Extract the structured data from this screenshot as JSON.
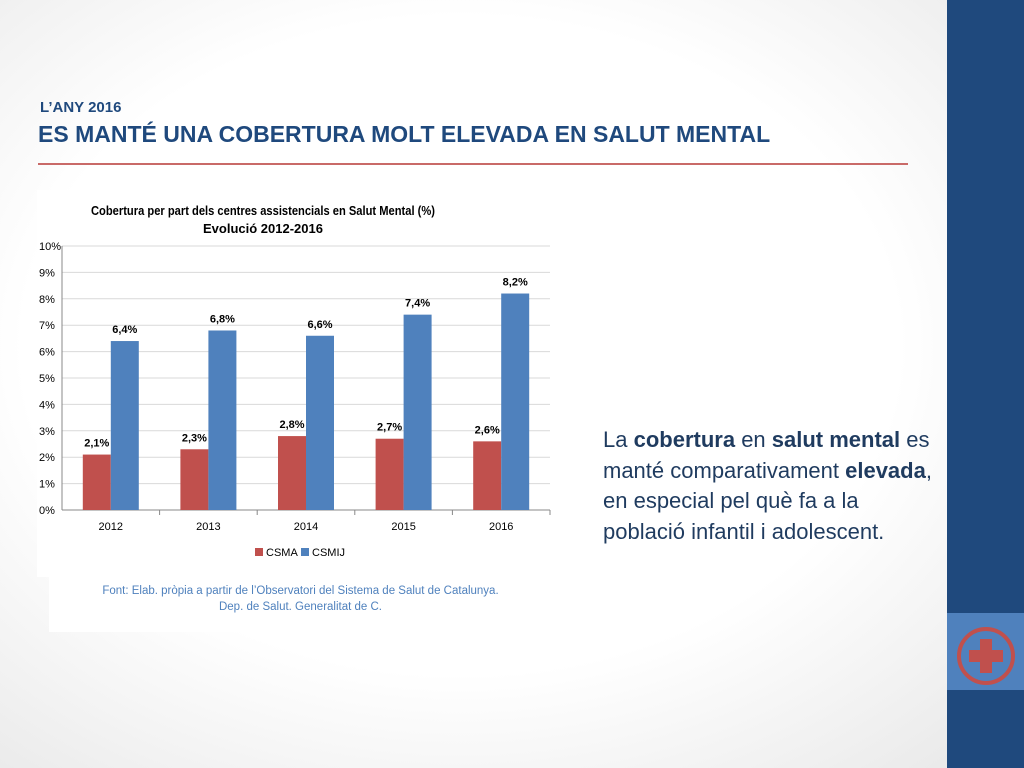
{
  "slide": {
    "kicker": "L’ANY 2016",
    "title": "ES MANTÉ UNA COBERTURA MOLT ELEVADA EN SALUT MENTAL",
    "source_line1": "Font: Elab. pròpia a partir de  l’Observatori del Sistema de Salut de Catalunya.",
    "source_line2": "Dep. de Salut. Generalitat de C.",
    "body": {
      "t1": "La ",
      "b1": "cobertura",
      "t2": " en ",
      "b2": "salut mental",
      "t3": " es manté comparativament ",
      "b3": "elevada",
      "t4": ", en especial pel què fa a la població infantil i adolescent."
    },
    "colors": {
      "sidebar": "#1f497d",
      "sidebar_band": "#4f81bd",
      "accent_rule": "#c0504d",
      "icon": "#c0504d"
    },
    "icon": "medical-cross-icon"
  },
  "chart_data": {
    "type": "bar",
    "title": "Cobertura per part dels centres assistencials en Salut Mental (%)",
    "subtitle": "Evolució 2012-2016",
    "categories": [
      "2012",
      "2013",
      "2014",
      "2015",
      "2016"
    ],
    "series": [
      {
        "name": "CSMA",
        "color": "#c0504d",
        "values": [
          2.1,
          2.3,
          2.8,
          2.7,
          2.6
        ],
        "labels": [
          "2,1%",
          "2,3%",
          "2,8%",
          "2,7%",
          "2,6%"
        ]
      },
      {
        "name": "CSMIJ",
        "color": "#4f81bd",
        "values": [
          6.4,
          6.8,
          6.6,
          7.4,
          8.2
        ],
        "labels": [
          "6,4%",
          "6,8%",
          "6,6%",
          "7,4%",
          "8,2%"
        ]
      }
    ],
    "ylim": [
      0,
      10
    ],
    "yticks": [
      "0%",
      "1%",
      "2%",
      "3%",
      "4%",
      "5%",
      "6%",
      "7%",
      "8%",
      "9%",
      "10%"
    ],
    "grid": true,
    "legend": "bottom"
  }
}
